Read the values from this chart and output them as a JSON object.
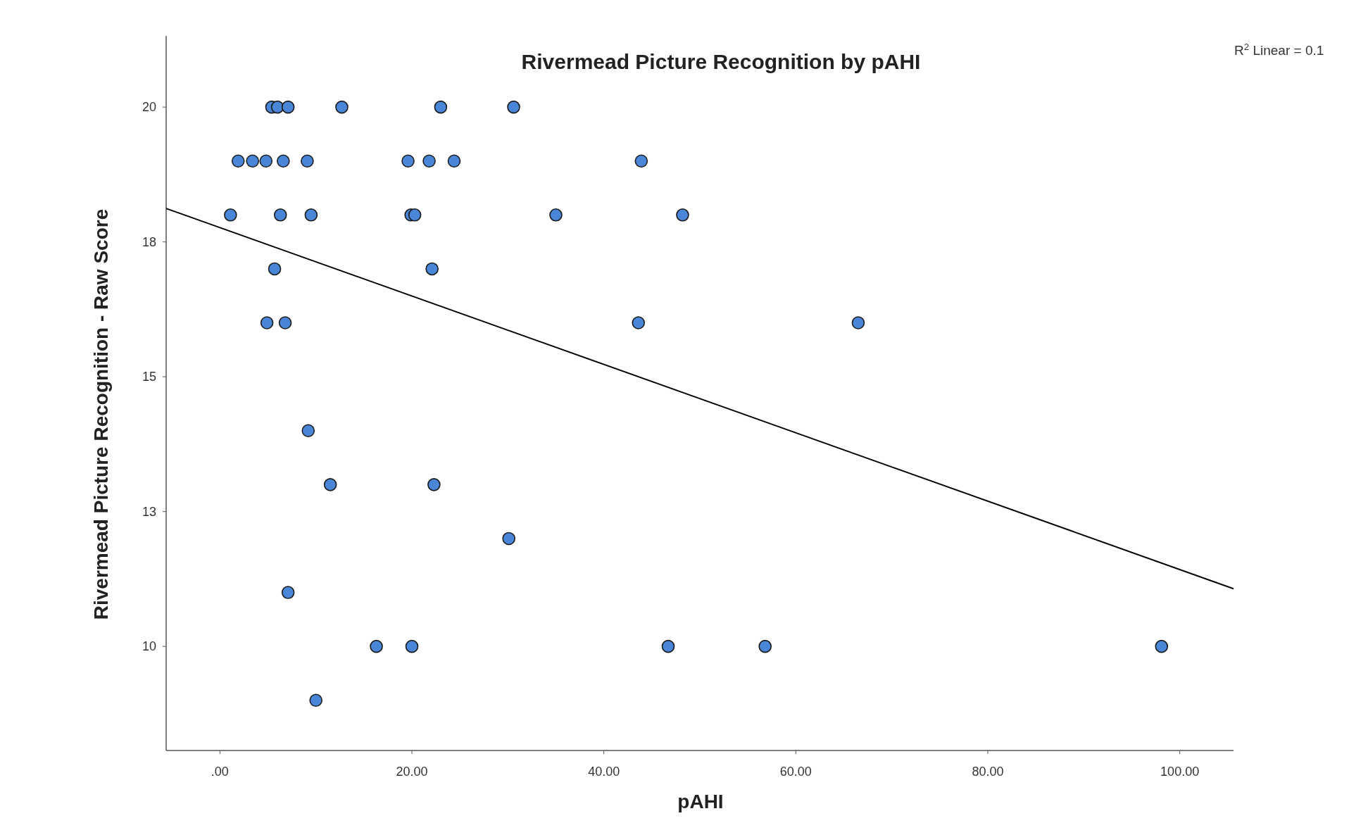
{
  "chart_data": {
    "type": "scatter",
    "title": "Rivermead Picture Recognition by pAHI",
    "xlabel": "pAHI",
    "ylabel": "Rivermead Picture Recognition - Raw Score",
    "annotations": [
      "R$^{2}$ Linear = 0.1"
    ],
    "xlim": [
      -5.6,
      105.6
    ],
    "xticks": [
      {
        "value": 0,
        "label": ".00"
      },
      {
        "value": 20,
        "label": "20.00"
      },
      {
        "value": 40,
        "label": "40.00"
      },
      {
        "value": 60,
        "label": "60.00"
      },
      {
        "value": 80,
        "label": "80.00"
      },
      {
        "value": 100,
        "label": "100.00"
      }
    ],
    "ylim": [
      8.07,
      21.32
    ],
    "yticks": [
      10,
      {
        "value": 12.5,
        "label": "13"
      },
      15,
      {
        "value": 17.5,
        "label": "18"
      },
      20
    ],
    "grid": false,
    "marker": "circle",
    "series": [
      {
        "color": "#4a86d8",
        "x": [
          5.4,
          6.0,
          7.1,
          12.7,
          23.0,
          30.6,
          1.9,
          3.4,
          4.8,
          6.6,
          9.1,
          19.6,
          21.8,
          24.4,
          43.9,
          1.1,
          6.3,
          9.5,
          19.9,
          20.3,
          35.0,
          48.2,
          5.7,
          22.1,
          4.9,
          6.8,
          43.6,
          66.5,
          9.2,
          11.5,
          22.3,
          30.1,
          7.1,
          16.3,
          20.0,
          46.7,
          56.8,
          98.1,
          10.0
        ],
        "values": [
          20,
          20,
          20,
          20,
          20,
          20,
          19,
          19,
          19,
          19,
          19,
          19,
          19,
          19,
          19,
          18,
          18,
          18,
          18,
          18,
          18,
          18,
          17,
          17,
          16,
          16,
          16,
          16,
          14,
          13,
          13,
          12,
          11,
          10,
          10,
          10,
          10,
          10,
          9
        ]
      },
      {
        "type": "line",
        "color": "#000000",
        "line_style": "solid",
        "marker": "none",
        "x": [
          -5.6,
          105.6
        ],
        "values": [
          18.12,
          11.07
        ]
      }
    ]
  }
}
